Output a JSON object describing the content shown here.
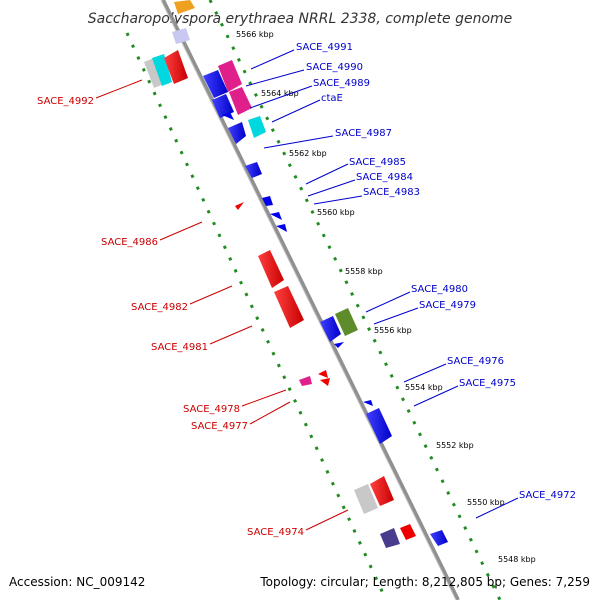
{
  "title": "Saccharopolyspora erythraea NRRL 2338, complete genome",
  "footer": {
    "accession": "Accession: NC_009142",
    "summary": "Topology: circular; Length: 8,212,805 bp; Genes: 7,259"
  },
  "ticks": [
    "5566 kbp",
    "5564 kbp",
    "5562 kbp",
    "5560 kbp",
    "5558 kbp",
    "5556 kbp",
    "5554 kbp",
    "5552 kbp",
    "5550 kbp",
    "5548 kbp"
  ],
  "labels_right": [
    "SACE_4991",
    "SACE_4990",
    "SACE_4989",
    "ctaE",
    "SACE_4987",
    "SACE_4985",
    "SACE_4984",
    "SACE_4983",
    "SACE_4980",
    "SACE_4979",
    "SACE_4976",
    "SACE_4975",
    "SACE_4972"
  ],
  "labels_left": [
    "SACE_4992",
    "SACE_4986",
    "SACE_4982",
    "SACE_4981",
    "SACE_4978",
    "SACE_4977",
    "SACE_4974"
  ],
  "colors": {
    "forward_label": "#0000cc",
    "reverse_label": "#cc0000",
    "backbone": "#808080",
    "dotted_track": "#228b22",
    "gene_blue": "#0000ee",
    "gene_red": "#ee0000",
    "gene_magenta": "#e0208a",
    "gene_cyan": "#00d8e0",
    "gene_grey": "#c8c8c8",
    "gene_olive": "#5f8c2a",
    "gene_purple": "#4a3c8c",
    "gene_lavender": "#c8c8f0",
    "gene_orange": "#f0a020"
  }
}
